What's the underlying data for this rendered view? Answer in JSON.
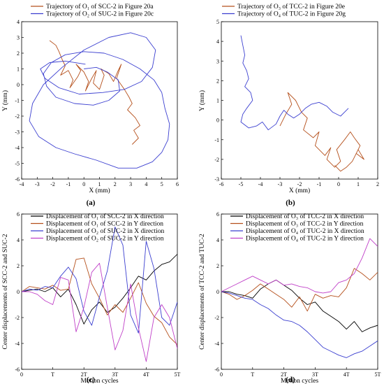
{
  "chart_data": [
    {
      "id": "a",
      "type": "line",
      "panel_label": "(a)",
      "xlabel": "X (mm)",
      "ylabel": "Y (mm)",
      "xlim": [
        -4,
        6
      ],
      "ylim": [
        -6,
        4
      ],
      "xticks": [
        -4,
        -3,
        -2,
        -1,
        0,
        1,
        2,
        3,
        4,
        5,
        6
      ],
      "yticks": [
        -6,
        -5,
        -4,
        -3,
        -2,
        -1,
        0,
        1,
        2,
        3,
        4
      ],
      "legend_position": "top-left",
      "series": [
        {
          "name": "Trajectory of O₁ of SCC-2 in Figure 20a",
          "color": "#b5501c",
          "x": [
            -2.2,
            -1.8,
            -1.6,
            -1.4,
            -1.2,
            -1.5,
            -1.0,
            -0.7,
            -0.9,
            -0.4,
            -0.2,
            -0.5,
            0.0,
            0.3,
            0.1,
            0.5,
            0.8,
            0.6,
            1.0,
            1.3,
            1.1,
            1.6,
            1.9,
            2.2,
            2.4,
            2.1,
            2.6,
            2.9,
            3.1,
            2.8,
            3.3,
            3.6,
            3.2,
            3.5,
            3.1
          ],
          "y": [
            2.8,
            2.5,
            2.1,
            1.6,
            1.2,
            0.6,
            0.9,
            0.3,
            -0.2,
            0.5,
            0.9,
            1.3,
            0.8,
            0.2,
            -0.4,
            0.4,
            0.9,
            0.1,
            -0.3,
            0.6,
            1.0,
            0.7,
            0.2,
            0.9,
            1.3,
            0.4,
            -0.3,
            -0.8,
            -1.2,
            -1.6,
            -2.1,
            -2.6,
            -2.9,
            -3.4,
            -3.8
          ]
        },
        {
          "name": "Trajectory of O₂ of SUC-2 in Figure 20c",
          "color": "#3b3fd0",
          "x": [
            0.0,
            0.8,
            1.5,
            2.2,
            2.3,
            1.6,
            0.6,
            -0.6,
            -1.8,
            -2.4,
            -2.6,
            -2.1,
            -1.2,
            0.0,
            1.3,
            2.5,
            3.6,
            4.5,
            5.0,
            5.2,
            5.5,
            5.4,
            5.0,
            4.4,
            3.4,
            2.2,
            0.8,
            -0.6,
            -1.8,
            -2.9,
            -3.5,
            -3.3,
            -2.6,
            -1.4,
            0.0,
            1.6,
            3.0,
            4.0,
            4.6,
            4.4,
            3.7,
            2.6,
            1.2,
            -0.3,
            -1.6,
            -2.5,
            -2.8,
            -2.2,
            -1.2,
            0.1
          ],
          "y": [
            1.0,
            1.1,
            0.8,
            0.3,
            -0.4,
            -1.0,
            -1.3,
            -1.2,
            -0.8,
            -0.1,
            0.7,
            1.4,
            1.9,
            2.1,
            2.0,
            1.6,
            1.0,
            0.3,
            -0.5,
            -1.5,
            -2.5,
            -3.5,
            -4.3,
            -4.9,
            -5.3,
            -5.3,
            -4.8,
            -4.4,
            -4.0,
            -3.3,
            -2.3,
            -1.2,
            0.0,
            1.1,
            2.2,
            3.0,
            3.3,
            3.0,
            2.2,
            1.1,
            0.2,
            -0.3,
            -0.5,
            -0.6,
            -0.2,
            0.4,
            1.0,
            1.4,
            1.5,
            1.3
          ]
        }
      ]
    },
    {
      "id": "b",
      "type": "line",
      "panel_label": "(b)",
      "xlabel": "X (mm)",
      "ylabel": "Y (mm)",
      "xlim": [
        -6,
        2
      ],
      "ylim": [
        -3,
        5
      ],
      "xticks": [
        -6,
        -5,
        -4,
        -3,
        -2,
        -1,
        0,
        1,
        2
      ],
      "yticks": [
        -3,
        -2,
        -1,
        0,
        1,
        2,
        3,
        4,
        5
      ],
      "legend_position": "top-right",
      "series": [
        {
          "name": "Trajectory of O₃ of TCC-2 in Figure 20e",
          "color": "#b5501c",
          "x": [
            -3.0,
            -2.7,
            -2.4,
            -2.6,
            -2.2,
            -1.9,
            -1.6,
            -1.8,
            -1.3,
            -1.0,
            -1.2,
            -0.7,
            -0.4,
            -0.6,
            -0.2,
            0.1,
            -0.1,
            0.3,
            0.6,
            0.8,
            1.1,
            0.9,
            1.3,
            1.0,
            0.7,
            0.4,
            0.1,
            -0.2
          ],
          "y": [
            -0.3,
            0.3,
            0.8,
            1.4,
            1.0,
            0.4,
            0.1,
            -0.5,
            -0.9,
            -0.6,
            -1.3,
            -1.8,
            -1.4,
            -2.0,
            -2.4,
            -2.1,
            -1.5,
            -1.0,
            -0.6,
            -0.9,
            -1.3,
            -1.7,
            -2.0,
            -1.5,
            -2.1,
            -2.4,
            -2.6,
            -2.3
          ]
        },
        {
          "name": "Trajectory of O₄ of TUC-2 in Figure 20g",
          "color": "#3b3fd0",
          "x": [
            -5.0,
            -4.9,
            -4.8,
            -4.9,
            -4.7,
            -4.6,
            -4.8,
            -4.5,
            -4.4,
            -4.7,
            -4.9,
            -5.0,
            -4.6,
            -4.2,
            -3.9,
            -3.6,
            -3.2,
            -3.0,
            -2.8,
            -2.6,
            -2.3,
            -2.0,
            -1.7,
            -1.4,
            -1.0,
            -0.6,
            -0.3,
            0.1,
            0.3,
            0.5
          ],
          "y": [
            4.3,
            3.8,
            3.3,
            2.9,
            2.5,
            2.1,
            1.7,
            1.4,
            1.0,
            0.6,
            0.3,
            -0.1,
            -0.4,
            -0.3,
            -0.1,
            -0.5,
            -0.2,
            0.2,
            0.5,
            0.3,
            0.1,
            0.3,
            0.6,
            0.8,
            0.9,
            0.7,
            0.4,
            0.2,
            0.4,
            0.6
          ]
        }
      ]
    },
    {
      "id": "c",
      "type": "line",
      "panel_label": "(c)",
      "xlabel": "Motion cycles",
      "ylabel": "Center displacements of SCC-2 and SUC-2",
      "xlim": [
        0,
        5
      ],
      "ylim": [
        -6,
        6
      ],
      "xticks": [
        0,
        1,
        2,
        3,
        4,
        5
      ],
      "xticklabels": [
        "0",
        "T",
        "2T",
        "3T",
        "4T",
        "5T"
      ],
      "yticks": [
        -6,
        -4,
        -2,
        0,
        2,
        4,
        6
      ],
      "legend_position": "top-left",
      "x": [
        0,
        0.25,
        0.5,
        0.75,
        1.0,
        1.25,
        1.5,
        1.75,
        2.0,
        2.25,
        2.5,
        2.75,
        3.0,
        3.25,
        3.5,
        3.75,
        4.0,
        4.25,
        4.5,
        4.75,
        5.0
      ],
      "series": [
        {
          "name": "Displacement of O₁ of SCC-2 in X direction",
          "color": "#000000",
          "values": [
            0.0,
            0.1,
            0.2,
            0.0,
            0.3,
            -0.4,
            0.2,
            -1.0,
            -2.5,
            -1.4,
            -0.8,
            -1.6,
            -1.2,
            -0.5,
            0.3,
            1.2,
            0.9,
            1.6,
            2.1,
            2.3,
            2.9
          ]
        },
        {
          "name": "Displacement of O₁ of SCC-2 in Y direction",
          "color": "#b5501c",
          "values": [
            0.0,
            0.4,
            0.3,
            0.2,
            0.5,
            0.1,
            0.2,
            2.5,
            2.6,
            0.6,
            -0.5,
            -1.8,
            -1.0,
            -1.6,
            -0.5,
            0.7,
            -0.9,
            -1.9,
            -2.4,
            -3.5,
            -4.1
          ]
        },
        {
          "name": "Displacement of O₂ of SUC-2 in X direction",
          "color": "#3b3fd0",
          "values": [
            0.0,
            0.2,
            0.1,
            0.4,
            0.3,
            1.2,
            1.9,
            1.0,
            -1.5,
            -2.6,
            -0.4,
            1.6,
            5.0,
            3.6,
            -1.8,
            -3.2,
            3.9,
            1.8,
            -2.0,
            -2.6,
            -0.8
          ]
        },
        {
          "name": "Displacement of O₂ of SUC-2 in Y direction",
          "color": "#c040c8",
          "values": [
            0.0,
            0.0,
            -0.2,
            -0.7,
            -1.0,
            1.1,
            0.9,
            -3.1,
            -1.2,
            1.5,
            2.2,
            -1.2,
            -4.5,
            -3.0,
            0.6,
            -2.8,
            -5.4,
            -2.0,
            -1.0,
            -2.0,
            -4.4
          ]
        }
      ]
    },
    {
      "id": "d",
      "type": "line",
      "panel_label": "(d)",
      "xlabel": "Motion cycles",
      "ylabel": "Center displacements of TCC-2 and TUC-2",
      "xlim": [
        0,
        5
      ],
      "ylim": [
        -6,
        6
      ],
      "xticks": [
        0,
        1,
        2,
        3,
        4,
        5
      ],
      "xticklabels": [
        "0",
        "T",
        "2T",
        "3T",
        "4T",
        "5T"
      ],
      "yticks": [
        -6,
        -4,
        -2,
        0,
        2,
        4,
        6
      ],
      "legend_position": "top-left",
      "x": [
        0,
        0.25,
        0.5,
        0.75,
        1.0,
        1.25,
        1.5,
        1.75,
        2.0,
        2.25,
        2.5,
        2.75,
        3.0,
        3.25,
        3.5,
        3.75,
        4.0,
        4.25,
        4.5,
        4.75,
        5.0
      ],
      "series": [
        {
          "name": "Displacement of O₃ of TCC-2 in X direction",
          "color": "#000000",
          "values": [
            0.0,
            0.0,
            -0.2,
            -0.3,
            -0.5,
            0.2,
            0.6,
            0.9,
            0.5,
            0.1,
            -0.5,
            -1.0,
            -0.8,
            -1.5,
            -1.9,
            -2.3,
            -2.9,
            -2.3,
            -3.1,
            -2.8,
            -2.6
          ]
        },
        {
          "name": "Displacement of O₃ of TCC-2 in Y direction",
          "color": "#b5501c",
          "values": [
            0.0,
            -0.2,
            -0.6,
            -0.3,
            0.1,
            0.6,
            0.2,
            -0.2,
            -0.6,
            -1.2,
            -0.4,
            -1.5,
            -0.2,
            -0.5,
            -0.3,
            -0.4,
            0.3,
            1.8,
            1.4,
            0.9,
            1.5
          ]
        },
        {
          "name": "Displacement of O₄ of TUC-2 in X direction",
          "color": "#3b3fd0",
          "values": [
            0.0,
            -0.1,
            -0.3,
            -0.5,
            -0.6,
            -1.0,
            -1.3,
            -1.8,
            -2.2,
            -2.3,
            -2.6,
            -3.1,
            -3.7,
            -4.3,
            -4.6,
            -4.9,
            -5.1,
            -4.8,
            -4.6,
            -4.2,
            -3.8
          ]
        },
        {
          "name": "Displacement of O₄ of TUC-2 in Y direction",
          "color": "#c040c8",
          "values": [
            0.0,
            0.3,
            0.6,
            0.9,
            1.2,
            0.9,
            0.6,
            0.9,
            0.5,
            0.6,
            0.4,
            0.3,
            0.0,
            -0.1,
            0.0,
            0.7,
            0.9,
            1.4,
            2.6,
            4.1,
            3.5
          ]
        }
      ]
    }
  ]
}
